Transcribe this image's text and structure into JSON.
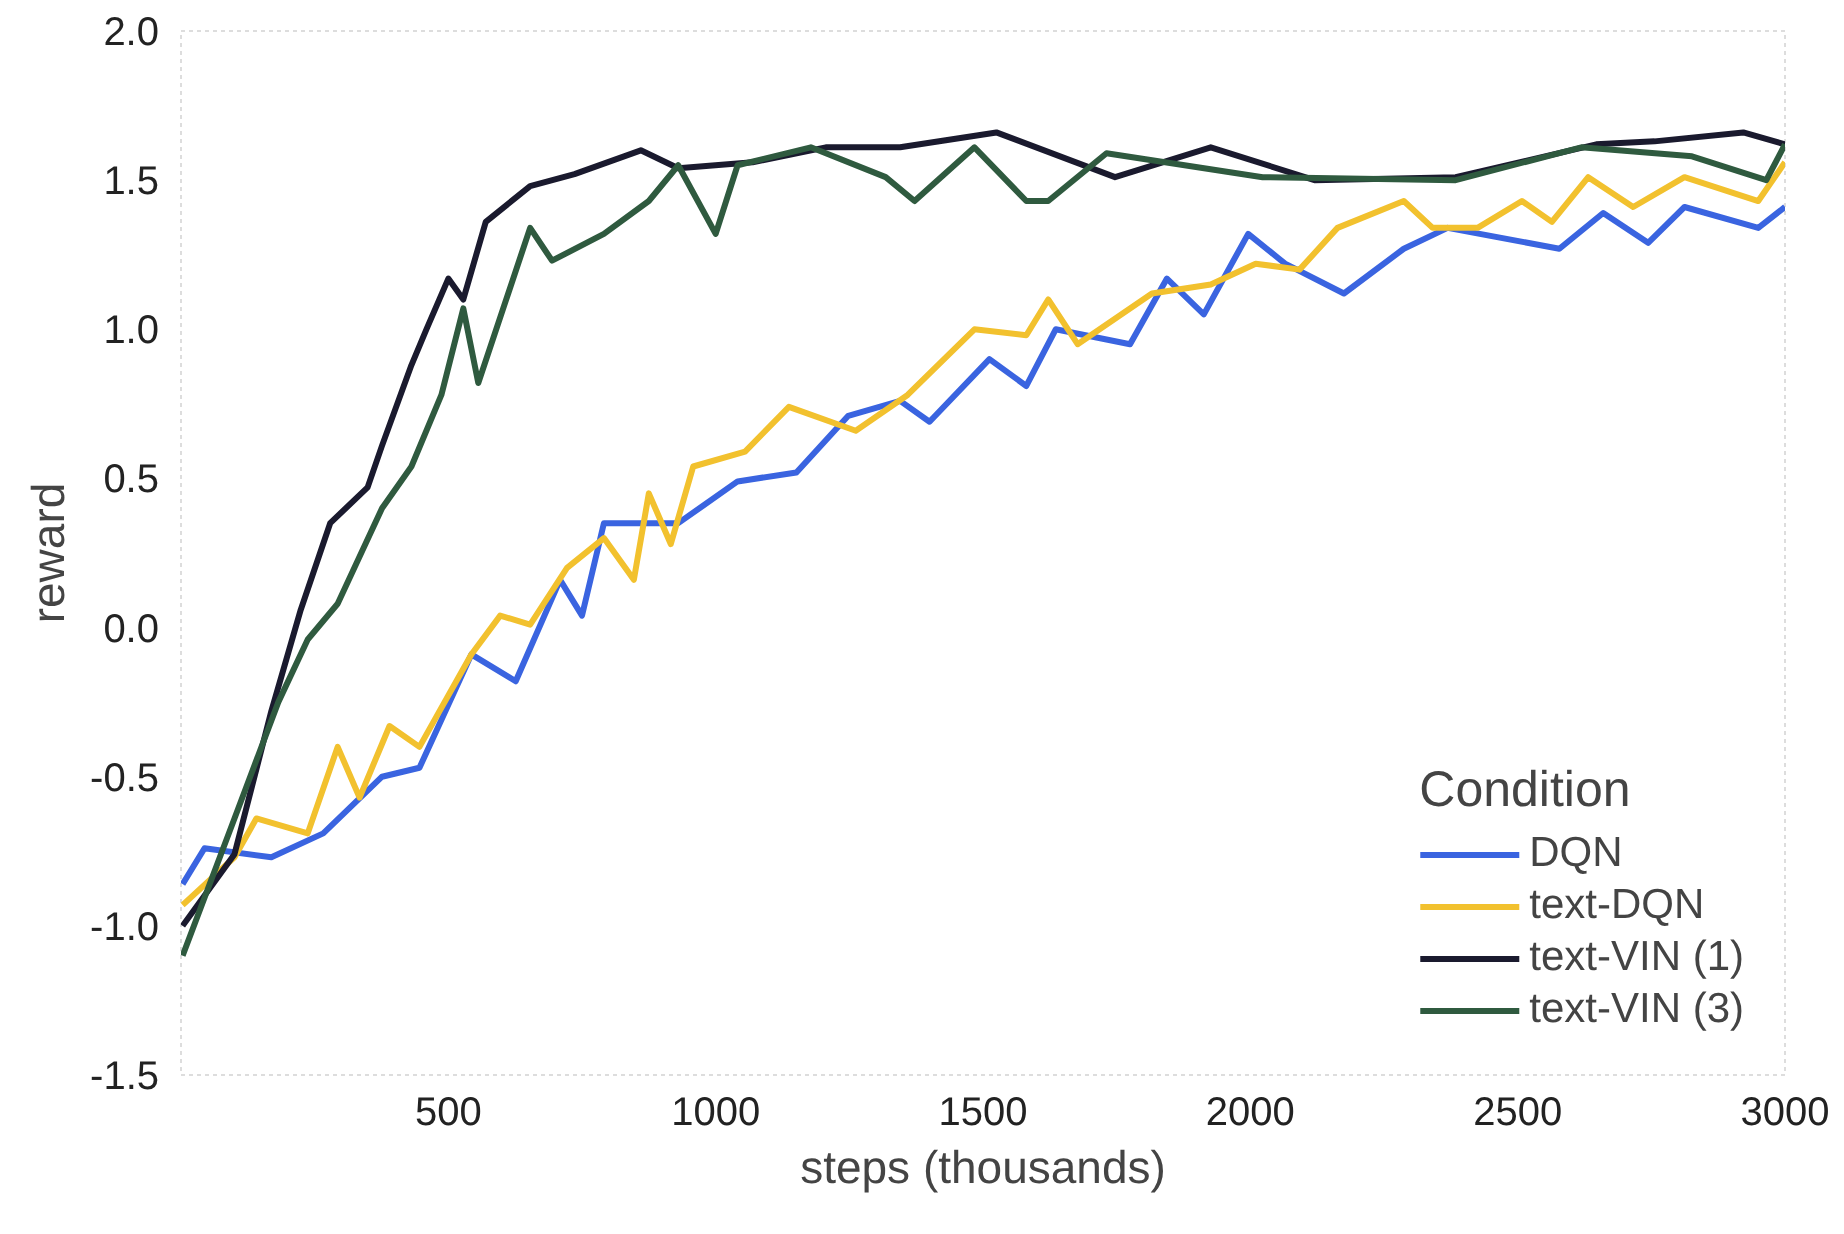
{
  "chart_data": {
    "type": "line",
    "xlabel": "steps (thousands)",
    "ylabel": "reward",
    "legend_title": "Condition",
    "legend": "bottom right",
    "grid": false,
    "line_style": "solid",
    "xlim": [
      0,
      3000
    ],
    "ylim": [
      -1.5,
      2.0
    ],
    "xticks": [
      500,
      1000,
      1500,
      2000,
      2500,
      3000
    ],
    "yticks": [
      -1.5,
      {
        "value": -1,
        "label": "-1.0"
      },
      -0.5,
      {
        "value": 0,
        "label": "0.0"
      },
      0.5,
      {
        "value": 1,
        "label": "1.0"
      },
      1.5,
      {
        "value": 2,
        "label": "2.0"
      }
    ],
    "series": [
      {
        "name": "DQN",
        "color": "#3a64e0",
        "x": [
          3,
          44,
          169,
          266,
          376,
          446,
          543,
          626,
          709,
          750,
          791,
          930,
          1041,
          1151,
          1248,
          1345,
          1400,
          1512,
          1581,
          1636,
          1775,
          1844,
          1913,
          1996,
          2065,
          2175,
          2287,
          2369,
          2578,
          2660,
          2744,
          2812,
          2950,
          3000
        ],
        "values": [
          -0.86,
          -0.74,
          -0.77,
          -0.69,
          -0.5,
          -0.47,
          -0.09,
          -0.18,
          0.16,
          0.04,
          0.35,
          0.35,
          0.49,
          0.52,
          0.71,
          0.76,
          0.69,
          0.9,
          0.81,
          1.0,
          0.95,
          1.17,
          1.05,
          1.32,
          1.22,
          1.12,
          1.27,
          1.34,
          1.27,
          1.39,
          1.29,
          1.41,
          1.34,
          1.41
        ]
      },
      {
        "name": "text-DQN",
        "color": "#f2c12e",
        "x": [
          3,
          100,
          141,
          237,
          293,
          334,
          390,
          446,
          543,
          597,
          653,
          722,
          791,
          847,
          875,
          916,
          958,
          1055,
          1137,
          1262,
          1359,
          1484,
          1581,
          1622,
          1677,
          1816,
          1926,
          2010,
          2092,
          2163,
          2287,
          2341,
          2425,
          2508,
          2564,
          2632,
          2716,
          2812,
          2950,
          3000
        ],
        "values": [
          -0.93,
          -0.77,
          -0.64,
          -0.69,
          -0.4,
          -0.57,
          -0.33,
          -0.4,
          -0.09,
          0.04,
          0.01,
          0.2,
          0.3,
          0.16,
          0.45,
          0.28,
          0.54,
          0.59,
          0.74,
          0.66,
          0.78,
          1.0,
          0.98,
          1.1,
          0.95,
          1.12,
          1.15,
          1.22,
          1.2,
          1.34,
          1.43,
          1.34,
          1.34,
          1.43,
          1.36,
          1.51,
          1.41,
          1.51,
          1.43,
          1.56
        ]
      },
      {
        "name": "text-VIN (1)",
        "color": "#1a1a2e",
        "x": [
          3,
          100,
          169,
          224,
          279,
          349,
          376,
          431,
          459,
          500,
          528,
          570,
          653,
          736,
          860,
          930,
          1069,
          1206,
          1345,
          1525,
          1747,
          1926,
          2120,
          2384,
          2647,
          2756,
          2922,
          3000
        ],
        "values": [
          -1.0,
          -0.76,
          -0.28,
          0.06,
          0.35,
          0.47,
          0.61,
          0.88,
          1.0,
          1.17,
          1.1,
          1.36,
          1.48,
          1.52,
          1.6,
          1.54,
          1.56,
          1.61,
          1.61,
          1.66,
          1.51,
          1.61,
          1.5,
          1.51,
          1.62,
          1.63,
          1.66,
          1.62
        ]
      },
      {
        "name": "text-VIN (3)",
        "color": "#2f5a3f",
        "x": [
          3,
          100,
          182,
          237,
          293,
          376,
          431,
          487,
          528,
          556,
          612,
          653,
          694,
          791,
          875,
          930,
          1000,
          1041,
          1178,
          1318,
          1372,
          1484,
          1581,
          1622,
          1731,
          2023,
          2384,
          2619,
          2826,
          2965,
          3000
        ],
        "values": [
          -1.1,
          -0.64,
          -0.25,
          -0.04,
          0.08,
          0.4,
          0.54,
          0.78,
          1.07,
          0.82,
          1.12,
          1.34,
          1.23,
          1.32,
          1.43,
          1.55,
          1.32,
          1.55,
          1.61,
          1.51,
          1.43,
          1.61,
          1.43,
          1.43,
          1.59,
          1.51,
          1.5,
          1.61,
          1.58,
          1.5,
          1.62
        ]
      }
    ]
  }
}
